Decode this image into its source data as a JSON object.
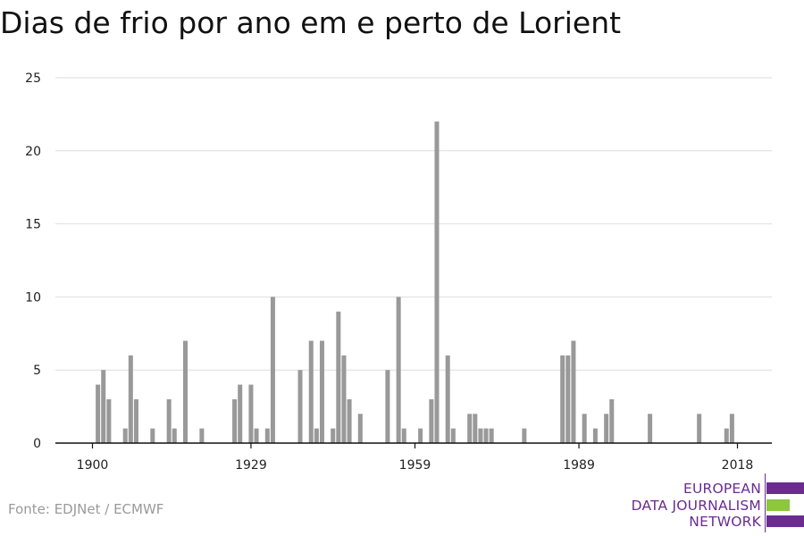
{
  "title": "Dias de frio por ano em e perto de Lorient",
  "source": "Fonte: EDJNet / ECMWF",
  "logo": {
    "lines": [
      "EUROPEAN",
      "DATA JOURNALISM",
      "NETWORK"
    ],
    "colors": {
      "purple": "#6a2c91",
      "green": "#8dc63f"
    }
  },
  "colors": {
    "bar": "#999999",
    "grid": "#dddddd",
    "axis": "#111111"
  },
  "chart_data": {
    "type": "bar",
    "title": "Dias de frio por ano em e perto de Lorient",
    "xlabel": "",
    "ylabel": "",
    "xlim": [
      1900,
      2018
    ],
    "ylim": [
      0,
      25
    ],
    "y_ticks": [
      0,
      5,
      10,
      15,
      20,
      25
    ],
    "x_ticks": [
      1900,
      1929,
      1959,
      1989,
      2018
    ],
    "grid": true,
    "x": [
      1901,
      1902,
      1903,
      1906,
      1907,
      1908,
      1911,
      1914,
      1915,
      1917,
      1920,
      1926,
      1927,
      1929,
      1930,
      1932,
      1933,
      1938,
      1940,
      1941,
      1942,
      1944,
      1945,
      1946,
      1947,
      1949,
      1954,
      1956,
      1957,
      1960,
      1962,
      1963,
      1965,
      1966,
      1969,
      1970,
      1971,
      1972,
      1973,
      1979,
      1986,
      1987,
      1988,
      1990,
      1992,
      1994,
      1995,
      2002,
      2011,
      2016,
      2017
    ],
    "values": [
      4,
      5,
      3,
      1,
      6,
      3,
      1,
      3,
      1,
      7,
      1,
      3,
      4,
      4,
      1,
      1,
      10,
      5,
      7,
      1,
      7,
      1,
      9,
      6,
      3,
      2,
      5,
      10,
      1,
      1,
      3,
      22,
      6,
      1,
      2,
      2,
      1,
      1,
      1,
      1,
      6,
      6,
      7,
      2,
      1,
      2,
      3,
      2,
      2,
      1,
      2
    ]
  }
}
